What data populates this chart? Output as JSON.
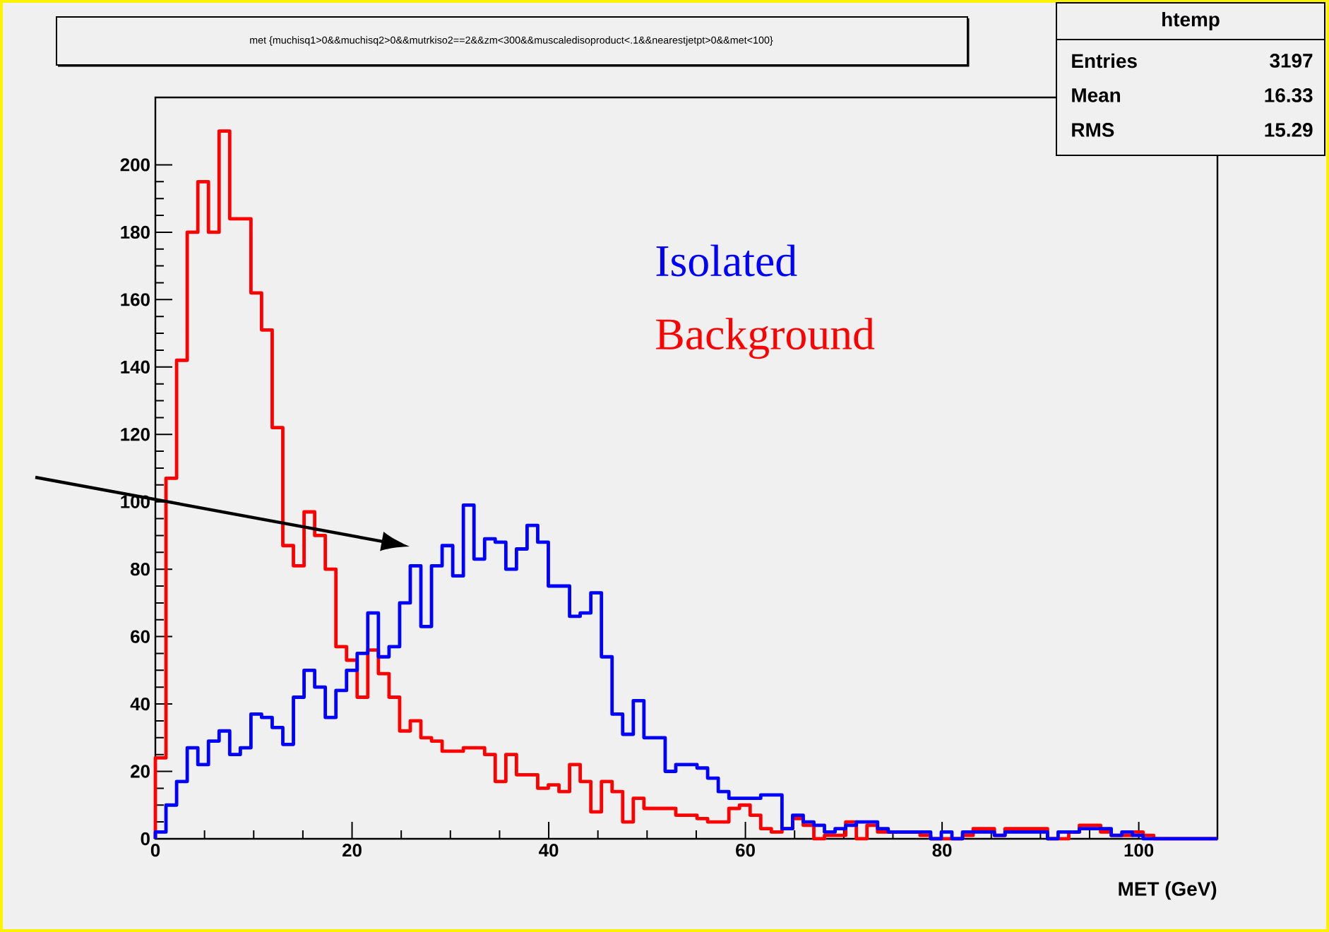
{
  "chart_data": {
    "type": "histogram",
    "title": "met {muchisq1>0&&muchisq2>0&&mutrkiso2==2&&zm<300&&muscaledisoproduct<.1&&nearestjetpt>0&&met<100}",
    "xlabel": "MET (GeV)",
    "annotations": [
      "htemp",
      "Entries",
      "3197",
      "Mean",
      "16.33",
      "RMS",
      "15.29"
    ],
    "bins": [
      0,
      1.08,
      2.16,
      3.24,
      4.32,
      5.4,
      6.48,
      7.56,
      8.64,
      9.72,
      10.8,
      11.88,
      12.96,
      14.04,
      15.12,
      16.2,
      17.28,
      18.36,
      19.44,
      20.52,
      21.6,
      22.68,
      23.76,
      24.84,
      25.92,
      27,
      28.08,
      29.16,
      30.24,
      31.32,
      32.4,
      33.48,
      34.56,
      35.64,
      36.72,
      37.8,
      38.88,
      39.96,
      41.04,
      42.12,
      43.2,
      44.28,
      45.36,
      46.44,
      47.52,
      48.6,
      49.68,
      50.76,
      51.84,
      52.92,
      54,
      55.08,
      56.16,
      57.24,
      58.32,
      59.4,
      60.48,
      61.56,
      62.64,
      63.72,
      64.8,
      65.88,
      66.96,
      68.04,
      69.12,
      70.2,
      71.28,
      72.36,
      73.44,
      74.52,
      75.6,
      76.68,
      77.76,
      78.84,
      79.92,
      81,
      82.08,
      83.16,
      84.24,
      85.32,
      86.4,
      87.48,
      88.56,
      89.64,
      90.72,
      91.8,
      92.88,
      93.96,
      95.04,
      96.12,
      97.2,
      98.28,
      99.36,
      100.44,
      101.52,
      102.6,
      103.68,
      104.76,
      105.84,
      106.92,
      108
    ],
    "series": [
      {
        "name": "Isolated",
        "color": "#0000ff",
        "values": [
          2,
          10,
          17,
          27,
          22,
          29,
          32,
          25,
          27,
          37,
          36,
          33,
          28,
          42,
          50,
          45,
          36,
          44,
          50,
          55,
          67,
          54,
          57,
          70,
          81,
          63,
          81,
          87,
          78,
          99,
          83,
          89,
          88,
          80,
          86,
          93,
          88,
          75,
          75,
          66,
          67,
          73,
          54,
          37,
          31,
          41,
          30,
          30,
          20,
          22,
          22,
          21,
          18,
          14,
          12,
          12,
          12,
          13,
          13,
          3,
          7,
          5,
          4,
          2,
          3,
          4,
          5,
          5,
          3,
          2,
          2,
          2,
          2,
          0,
          2,
          0,
          2,
          2,
          2,
          1,
          2,
          2,
          2,
          2,
          0,
          2,
          2,
          3,
          3,
          3,
          1,
          2,
          1,
          0,
          0,
          0,
          0,
          0,
          0,
          0
        ]
      },
      {
        "name": "Background",
        "color": "#ff0000",
        "values": [
          24,
          107,
          142,
          180,
          195,
          180,
          210,
          184,
          184,
          162,
          151,
          122,
          87,
          81,
          97,
          90,
          80,
          57,
          53,
          42,
          56,
          49,
          42,
          32,
          35,
          30,
          29,
          26,
          26,
          27,
          27,
          25,
          17,
          25,
          19,
          19,
          15,
          16,
          14,
          22,
          17,
          8,
          17,
          14,
          5,
          12,
          9,
          9,
          9,
          7,
          7,
          6,
          5,
          5,
          9,
          10,
          7,
          3,
          2,
          3,
          6,
          4,
          0,
          1,
          1,
          5,
          0,
          4,
          2,
          2,
          2,
          2,
          1,
          0,
          0,
          0,
          1,
          3,
          3,
          1,
          3,
          3,
          3,
          3,
          0,
          0,
          2,
          4,
          4,
          2,
          1,
          1,
          2,
          1,
          0,
          0,
          0,
          0,
          0,
          0
        ]
      }
    ],
    "xlim": [
      0,
      108
    ],
    "ylim": [
      0,
      220
    ],
    "xticks": [
      0,
      20,
      40,
      60,
      80,
      100
    ],
    "yticks": [
      0,
      20,
      40,
      60,
      80,
      100,
      120,
      140,
      160,
      180,
      200
    ],
    "legend": "top right"
  }
}
